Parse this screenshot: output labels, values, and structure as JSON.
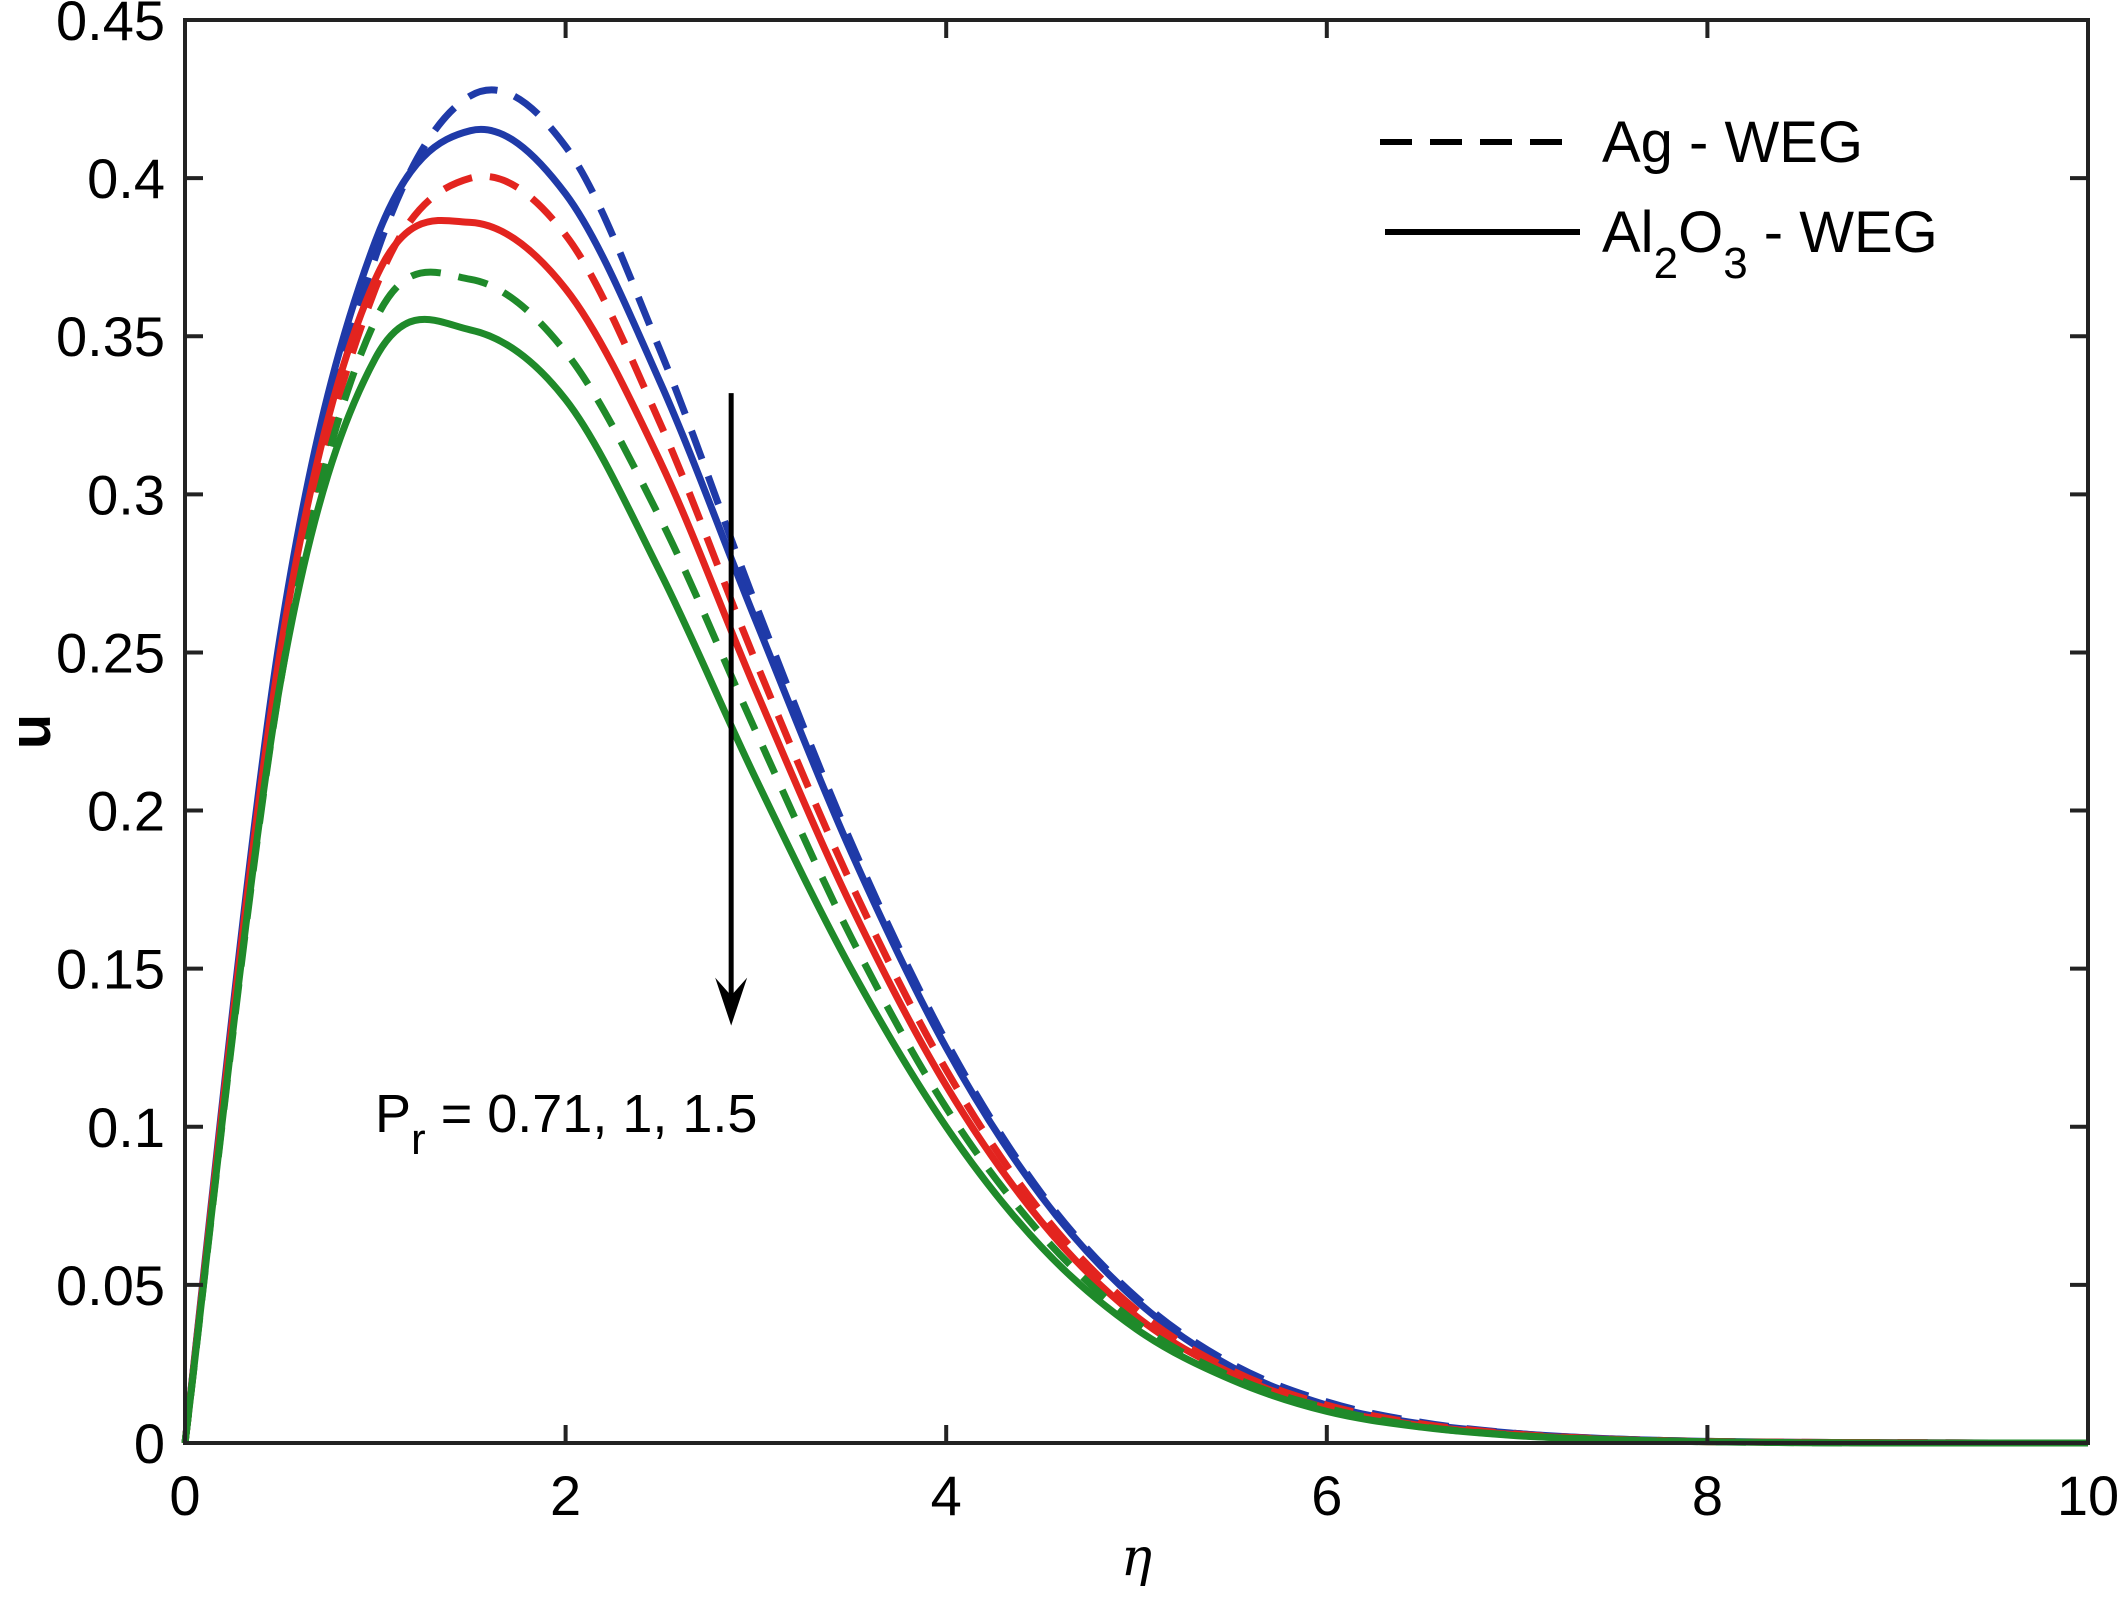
{
  "chart_data": {
    "type": "line",
    "title": "",
    "xlabel": "η",
    "ylabel": "u",
    "xlim": [
      0,
      10
    ],
    "ylim": [
      0,
      0.45
    ],
    "xticks": [
      0,
      2,
      4,
      6,
      8,
      10
    ],
    "xtick_labels": [
      "0",
      "2",
      "4",
      "6",
      "8",
      "10"
    ],
    "yticks": [
      0,
      0.05,
      0.1,
      0.15,
      0.2,
      0.25,
      0.3,
      0.35,
      0.4,
      0.45
    ],
    "ytick_labels": [
      "0",
      "0.05",
      "0.1",
      "0.15",
      "0.2",
      "0.25",
      "0.3",
      "0.35",
      "0.4",
      "0.45"
    ],
    "grid": false,
    "legend": {
      "position": "top-right",
      "entries": [
        {
          "style": "dashed",
          "text": "Ag - WEG"
        },
        {
          "style": "solid",
          "text_parts": [
            "Al",
            "2",
            "O",
            "3",
            " - WEG"
          ]
        }
      ]
    },
    "annotation": {
      "text_main": "P",
      "text_sub": "r",
      "text_rest": " = 0.71, 1, 1.5",
      "arrow": {
        "x": 2.87,
        "y_from": 0.332,
        "y_to": 0.132
      }
    },
    "x": [
      0,
      0.5,
      1,
      1.5,
      2,
      2.5,
      3,
      3.5,
      4,
      4.5,
      5,
      5.5,
      6,
      6.5,
      7,
      7.5,
      8,
      8.5,
      9,
      9.5,
      10
    ],
    "series": [
      {
        "fluid": "Ag - WEG",
        "style": "dashed",
        "color": "#1f3aa8",
        "values": [
          0,
          0.25,
          0.375,
          0.426,
          0.41,
          0.345,
          0.265,
          0.19,
          0.127,
          0.079,
          0.046,
          0.025,
          0.013,
          0.0065,
          0.003,
          0.0013,
          0.0005,
          0.0002,
          0.0001,
          0,
          0
        ]
      },
      {
        "fluid": "Al2O3 - WEG",
        "style": "solid",
        "color": "#1f3aa8",
        "values": [
          0,
          0.255,
          0.38,
          0.415,
          0.395,
          0.335,
          0.26,
          0.187,
          0.125,
          0.078,
          0.045,
          0.024,
          0.012,
          0.006,
          0.003,
          0.0013,
          0.0005,
          0.0002,
          0.0001,
          0,
          0
        ]
      },
      {
        "fluid": "Ag - WEG",
        "style": "dashed",
        "color": "#e3241f",
        "values": [
          0,
          0.245,
          0.365,
          0.4,
          0.382,
          0.322,
          0.247,
          0.177,
          0.118,
          0.073,
          0.042,
          0.023,
          0.012,
          0.006,
          0.0028,
          0.0012,
          0.0005,
          0.0002,
          0.0001,
          0,
          0
        ]
      },
      {
        "fluid": "Al2O3 - WEG",
        "style": "solid",
        "color": "#e3241f",
        "values": [
          0,
          0.25,
          0.368,
          0.386,
          0.365,
          0.31,
          0.238,
          0.17,
          0.113,
          0.07,
          0.04,
          0.022,
          0.011,
          0.0055,
          0.0026,
          0.0011,
          0.0004,
          0.0002,
          0.0001,
          0,
          0
        ]
      },
      {
        "fluid": "Ag - WEG",
        "style": "dashed",
        "color": "#1f8a2a",
        "values": [
          0,
          0.24,
          0.355,
          0.368,
          0.345,
          0.292,
          0.225,
          0.16,
          0.106,
          0.066,
          0.038,
          0.021,
          0.011,
          0.0052,
          0.0024,
          0.001,
          0.0004,
          0.0001,
          0,
          0,
          0
        ]
      },
      {
        "fluid": "Al2O3 - WEG",
        "style": "solid",
        "color": "#1f8a2a",
        "values": [
          0,
          0.24,
          0.343,
          0.352,
          0.33,
          0.275,
          0.21,
          0.15,
          0.1,
          0.062,
          0.036,
          0.02,
          0.01,
          0.005,
          0.0023,
          0.001,
          0.0004,
          0.0001,
          0,
          0,
          0
        ]
      }
    ]
  }
}
